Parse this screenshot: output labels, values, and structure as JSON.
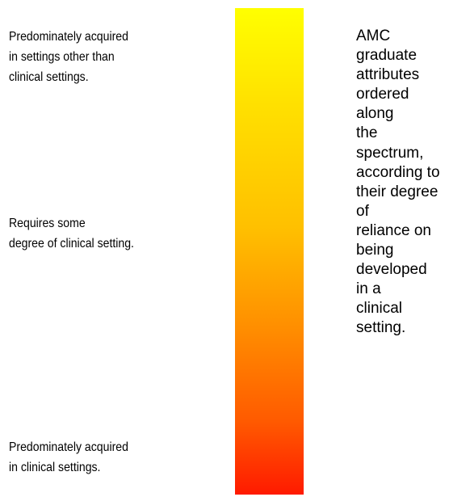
{
  "left_labels": {
    "top": [
      "Predominately acquired",
      "in settings other than",
      "clinical settings."
    ],
    "middle": [
      "Requires some",
      "degree of clinical setting."
    ],
    "bottom": [
      "Predominately acquired",
      "in clinical settings."
    ]
  },
  "spectrum": {
    "top_color": "#ffff00",
    "bottom_color": "#ff1a00"
  },
  "right_text": [
    "AMC",
    "graduate",
    "attributes",
    "ordered",
    "along",
    "the",
    "spectrum,",
    "according to",
    "their degree",
    "of",
    "reliance on",
    "being",
    "developed",
    "in a",
    "clinical",
    "setting."
  ]
}
